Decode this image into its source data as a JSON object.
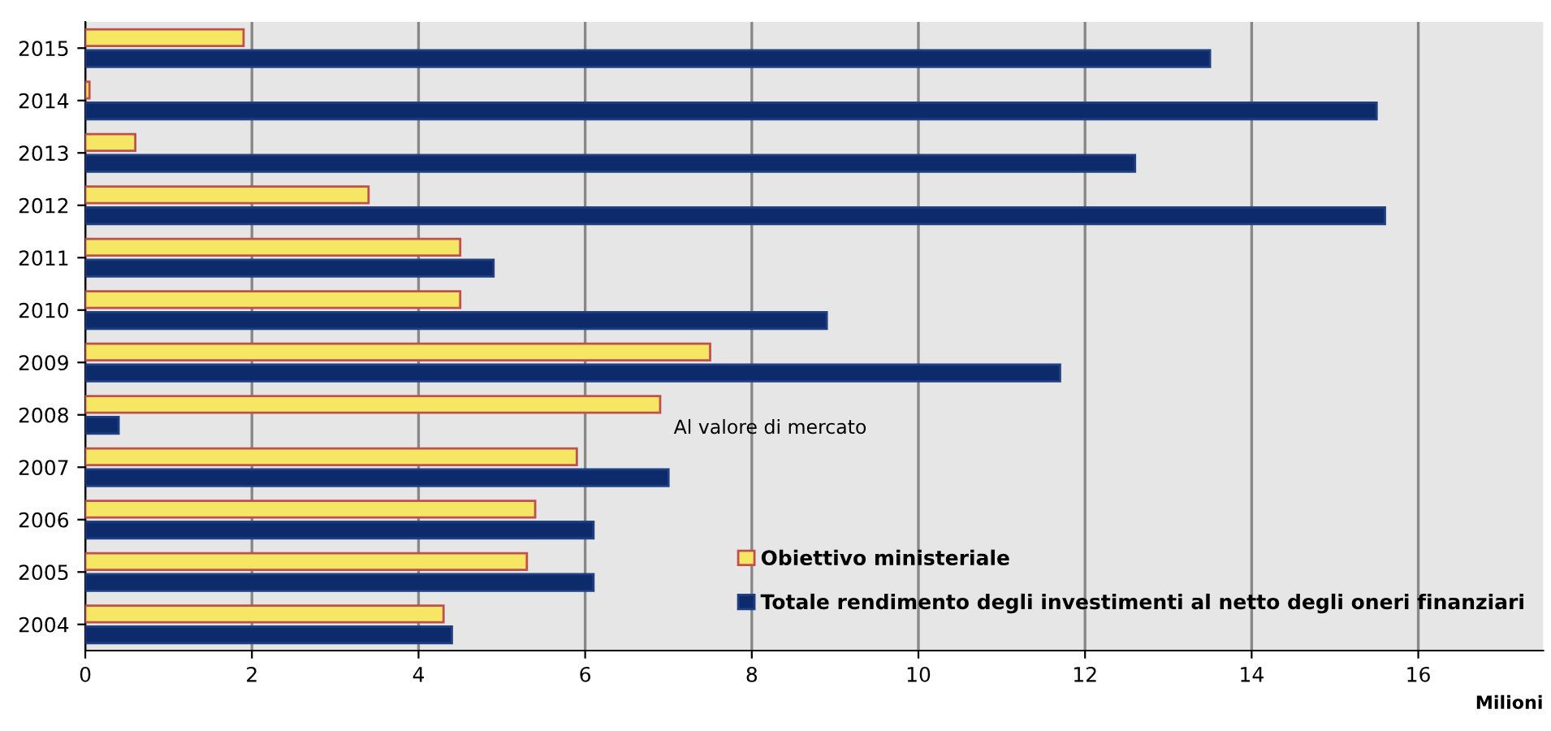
{
  "chart_data": {
    "type": "bar",
    "orientation": "horizontal",
    "xlabel": "Milioni",
    "categories": [
      "2015",
      "2014",
      "2013",
      "2012",
      "2011",
      "2010",
      "2009",
      "2008",
      "2007",
      "2006",
      "2005",
      "2004"
    ],
    "series": [
      {
        "name": "Obiettivo ministeriale",
        "color": "#f5e663",
        "values": [
          1.9,
          0.05,
          0.6,
          3.4,
          4.5,
          4.5,
          7.5,
          6.9,
          5.9,
          5.4,
          5.3,
          4.3
        ]
      },
      {
        "name": "Totale rendimento degli investimenti al netto degli oneri finanziari",
        "color": "#0d2a6b",
        "values": [
          13.5,
          15.5,
          12.6,
          15.6,
          4.9,
          8.9,
          11.7,
          0.4,
          7.0,
          6.1,
          6.1,
          4.4
        ]
      }
    ],
    "annotations": [
      {
        "text": "Al valore di mercato",
        "x": 6.9,
        "y": "2008"
      }
    ],
    "xlim": [
      0,
      17.5
    ],
    "xticks": [
      0,
      2,
      4,
      6,
      8,
      10,
      12,
      14,
      16
    ],
    "grid": "x",
    "legend": "bottom right"
  }
}
